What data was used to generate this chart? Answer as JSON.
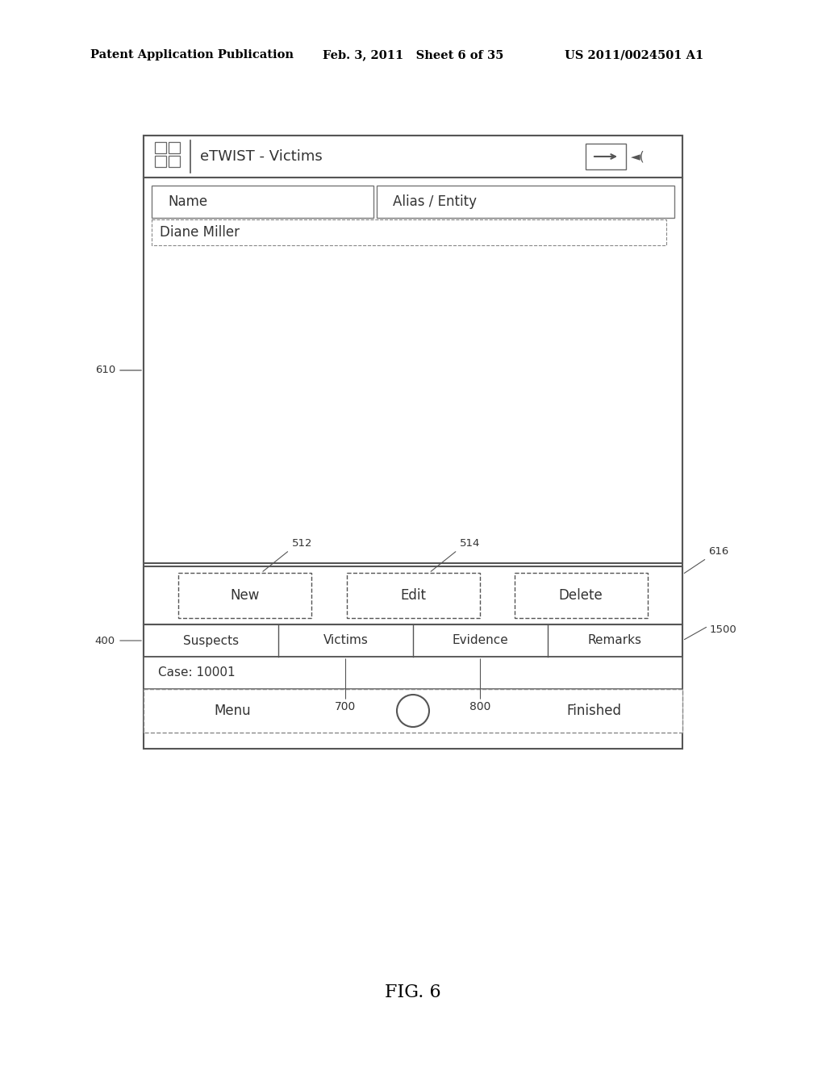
{
  "bg_color": "#ffffff",
  "header_left": "Patent Application Publication",
  "header_mid": "Feb. 3, 2011   Sheet 6 of 35",
  "header_right": "US 2011/0024501 A1",
  "fig_label": "FIG. 6",
  "title_bar_text": "eTWIST - Victims",
  "col1_header": "Name",
  "col2_header": "Alias / Entity",
  "row1_data": "Diane Miller",
  "tab_labels": [
    "Suspects",
    "Victims",
    "Evidence",
    "Remarks"
  ],
  "btn_labels": [
    "New",
    "Edit",
    "Delete"
  ],
  "case_label": "Case: 10001",
  "label_700": "700",
  "label_800": "800",
  "menu_label": "Menu",
  "finished_label": "Finished",
  "text_color": "#333333",
  "border_color": "#555555",
  "dashed_color": "#888888"
}
